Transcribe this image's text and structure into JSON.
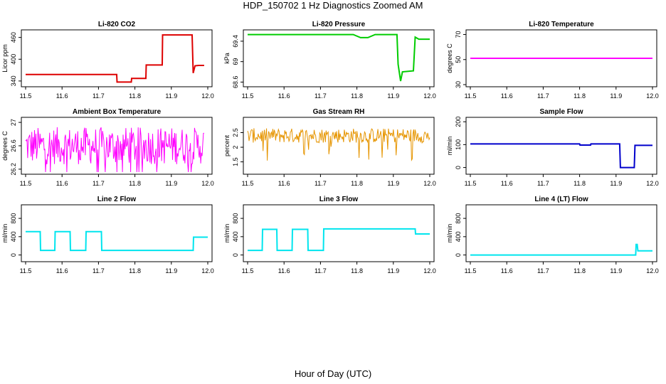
{
  "figure": {
    "title": "HDP_150702  1 Hz Diagnostics Zoomed AM",
    "xlabel": "Hour of Day (UTC)"
  },
  "chart_data": [
    {
      "type": "line",
      "title": "Li-820 CO2",
      "ylabel": "Licor ppm",
      "color": "#dd0000",
      "xlim": [
        11.5,
        12.0
      ],
      "ylim": [
        330,
        475
      ],
      "xticks": [
        "11.5",
        "11.6",
        "11.7",
        "11.8",
        "11.9",
        "12.0"
      ],
      "yticks": [
        340,
        400,
        460
      ],
      "series": [
        {
          "x": [
            11.5,
            11.75,
            11.751,
            11.79,
            11.791,
            11.83,
            11.831,
            11.875,
            11.876,
            11.957,
            11.96,
            11.965,
            11.975,
            11.99
          ],
          "y": [
            358,
            358,
            337,
            337,
            347,
            347,
            384,
            384,
            467,
            467,
            362,
            382,
            383,
            383
          ]
        }
      ]
    },
    {
      "type": "line",
      "title": "Li-820 Pressure",
      "ylabel": "kPa",
      "color": "#00cc00",
      "xlim": [
        11.5,
        12.0
      ],
      "ylim": [
        68.55,
        69.58
      ],
      "xticks": [
        "11.5",
        "11.6",
        "11.7",
        "11.8",
        "11.9",
        "12.0"
      ],
      "yticks": [
        68.6,
        69.0,
        69.4
      ],
      "series": [
        {
          "x": [
            11.5,
            11.79,
            11.81,
            11.83,
            11.85,
            11.91,
            11.913,
            11.92,
            11.925,
            11.955,
            11.96,
            11.97,
            12.0
          ],
          "y": [
            69.53,
            69.53,
            69.47,
            69.47,
            69.53,
            69.53,
            68.95,
            68.62,
            68.8,
            68.82,
            69.48,
            69.44,
            69.44
          ]
        }
      ]
    },
    {
      "type": "line",
      "title": "Li-820 Temperature",
      "ylabel": "degrees C",
      "color": "#ff00ff",
      "xlim": [
        11.5,
        12.0
      ],
      "ylim": [
        30,
        72
      ],
      "xticks": [
        "11.5",
        "11.6",
        "11.7",
        "11.8",
        "11.9",
        "12.0"
      ],
      "yticks": [
        30,
        50,
        70
      ],
      "series": [
        {
          "x": [
            11.5,
            12.0
          ],
          "y": [
            51,
            51
          ]
        }
      ]
    },
    {
      "type": "line",
      "title": "Ambient Box Temperature",
      "ylabel": "degrees C",
      "color": "#ff00ff",
      "xlim": [
        11.5,
        12.0
      ],
      "ylim": [
        26.15,
        27.05
      ],
      "xticks": [
        "11.5",
        "11.6",
        "11.7",
        "11.8",
        "11.9",
        "12.0"
      ],
      "yticks": [
        26.2,
        26.6,
        27.0
      ],
      "series": [
        {
          "x": [
            11.5,
            11.99
          ],
          "y": [
            26.6,
            26.6
          ],
          "noise": 0.32
        }
      ]
    },
    {
      "type": "line",
      "title": "Gas Stream RH",
      "ylabel": "percent",
      "color": "#e69500",
      "xlim": [
        11.5,
        12.0
      ],
      "ylim": [
        1.15,
        2.95
      ],
      "xticks": [
        "11.5",
        "11.6",
        "11.7",
        "11.8",
        "11.9",
        "12.0"
      ],
      "yticks": [
        1.5,
        2.0,
        2.5
      ],
      "series": [
        {
          "x": [
            11.5,
            12.0
          ],
          "y": [
            2.4,
            2.4
          ],
          "noise": 0.25
        }
      ]
    },
    {
      "type": "line",
      "title": "Sample Flow",
      "ylabel": "ml/min",
      "color": "#0000cc",
      "xlim": [
        11.5,
        12.0
      ],
      "ylim": [
        -20,
        210
      ],
      "xticks": [
        "11.5",
        "11.6",
        "11.7",
        "11.8",
        "11.9",
        "12.0"
      ],
      "yticks": [
        0,
        100,
        200
      ],
      "series": [
        {
          "x": [
            11.5,
            11.8,
            11.801,
            11.83,
            11.831,
            11.91,
            11.912,
            11.95,
            11.952,
            12.0
          ],
          "y": [
            103,
            103,
            98,
            98,
            103,
            103,
            0,
            0,
            97,
            97
          ]
        }
      ]
    },
    {
      "type": "line",
      "title": "Line 2 Flow",
      "ylabel": "ml/min",
      "color": "#00e5ee",
      "xlim": [
        11.5,
        12.0
      ],
      "ylim": [
        -100,
        1050
      ],
      "xticks": [
        "11.5",
        "11.6",
        "11.7",
        "11.8",
        "11.9",
        "12.0"
      ],
      "yticks": [
        0,
        400,
        800
      ],
      "series": [
        {
          "x": [
            11.5,
            11.54,
            11.541,
            11.58,
            11.581,
            11.622,
            11.623,
            11.665,
            11.666,
            11.708,
            11.709,
            11.96,
            11.961,
            12.0
          ],
          "y": [
            510,
            510,
            100,
            100,
            510,
            510,
            100,
            100,
            510,
            510,
            100,
            100,
            390,
            390
          ]
        }
      ]
    },
    {
      "type": "line",
      "title": "Line 3 Flow",
      "ylabel": "ml/min",
      "color": "#00e5ee",
      "xlim": [
        11.5,
        12.0
      ],
      "ylim": [
        -100,
        1050
      ],
      "xticks": [
        "11.5",
        "11.6",
        "11.7",
        "11.8",
        "11.9",
        "12.0"
      ],
      "yticks": [
        0,
        400,
        800
      ],
      "series": [
        {
          "x": [
            11.5,
            11.54,
            11.541,
            11.58,
            11.581,
            11.622,
            11.623,
            11.665,
            11.666,
            11.708,
            11.709,
            11.96,
            11.961,
            12.0
          ],
          "y": [
            100,
            100,
            560,
            560,
            100,
            100,
            560,
            560,
            100,
            100,
            570,
            570,
            460,
            460
          ]
        }
      ]
    },
    {
      "type": "line",
      "title": "Line 4 (LT) Flow",
      "ylabel": "ml/min",
      "color": "#00e5ee",
      "xlim": [
        11.5,
        12.0
      ],
      "ylim": [
        -100,
        1050
      ],
      "xticks": [
        "11.5",
        "11.6",
        "11.7",
        "11.8",
        "11.9",
        "12.0"
      ],
      "yticks": [
        0,
        400,
        800
      ],
      "series": [
        {
          "x": [
            11.5,
            11.954,
            11.955,
            11.958,
            11.96,
            11.962,
            12.0
          ],
          "y": [
            0,
            0,
            230,
            230,
            90,
            90,
            90
          ]
        }
      ]
    }
  ]
}
